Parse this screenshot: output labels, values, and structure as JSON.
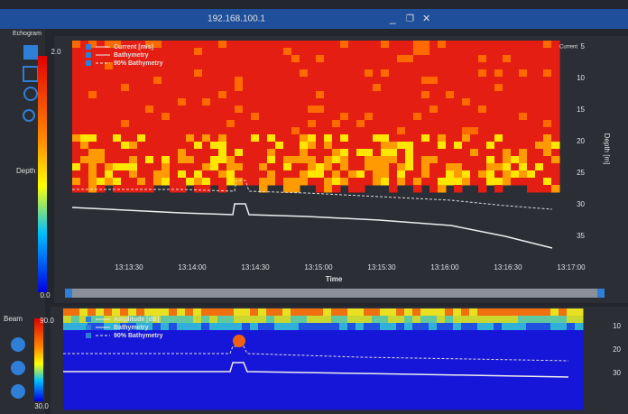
{
  "window": {
    "title": "192.168.100.1"
  },
  "echogram": {
    "title": "Echogram",
    "scale_max": "2.0",
    "scale_min": "0.0",
    "side_label": "Depth",
    "legend": [
      "Current [m/s]",
      "Bathymetry",
      "90% Bathymetry"
    ],
    "x_ticks": [
      "13:13:30",
      "13:14:00",
      "13:14:30",
      "13:15:00",
      "13:15:30",
      "13:16:00",
      "13:16:30",
      "13:17:00"
    ],
    "x_label": "Time",
    "y_label": "Depth [m]",
    "y_ticks": [
      5,
      10,
      15,
      20,
      25,
      30,
      35
    ],
    "corner_label": "Current"
  },
  "beam": {
    "side_label": "Beam",
    "scale_max": "90.0",
    "scale_min": "30.0",
    "legend": [
      "Amplitude [dB]",
      "Bathymetry",
      "90% Bathymetry"
    ],
    "y_ticks": [
      10,
      20,
      30
    ]
  }
}
